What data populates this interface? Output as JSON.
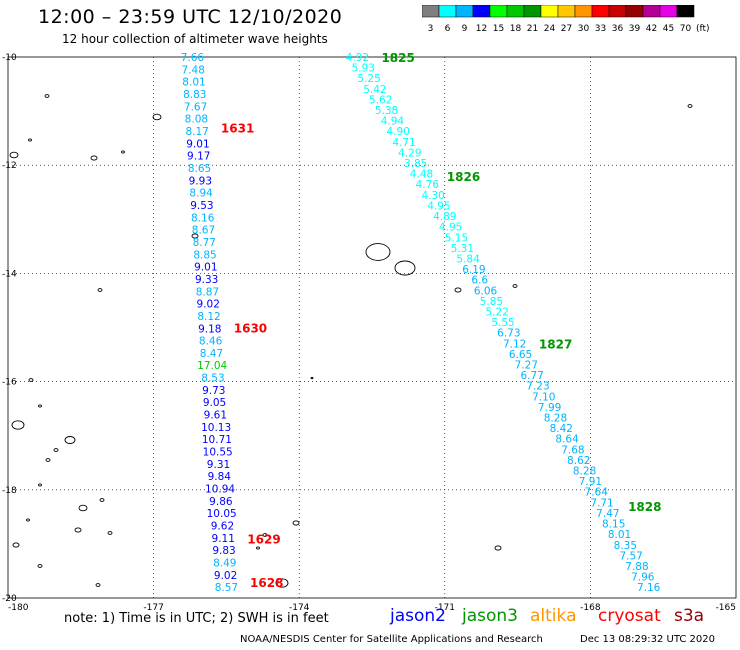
{
  "header": {
    "title": "12:00 – 23:59 UTC 12/10/2020",
    "subtitle": "12 hour collection of altimeter wave heights"
  },
  "legend": {
    "bins": [
      {
        "label": "3",
        "color": "#7f7f7f"
      },
      {
        "label": "6",
        "color": "#00ffff"
      },
      {
        "label": "9",
        "color": "#00b4ff"
      },
      {
        "label": "12",
        "color": "#0000ff"
      },
      {
        "label": "15",
        "color": "#00ff00"
      },
      {
        "label": "18",
        "color": "#00c800"
      },
      {
        "label": "21",
        "color": "#009600"
      },
      {
        "label": "24",
        "color": "#ffff00"
      },
      {
        "label": "27",
        "color": "#ffc800"
      },
      {
        "label": "30",
        "color": "#ff9600"
      },
      {
        "label": "33",
        "color": "#ff0000"
      },
      {
        "label": "36",
        "color": "#c80000"
      },
      {
        "label": "39",
        "color": "#960000"
      },
      {
        "label": "42",
        "color": "#b40096"
      },
      {
        "label": "45",
        "color": "#e600e6"
      },
      {
        "label": "70",
        "color": "#000000"
      }
    ],
    "unit": "(ft)"
  },
  "axes": {
    "lon_ticks": [
      "-180",
      "-177",
      "-174",
      "-171",
      "-168",
      "-165"
    ],
    "lat_ticks": [
      "-10",
      "-12",
      "-14",
      "-16",
      "-18",
      "-20"
    ],
    "lon_range": [
      -180,
      -165
    ],
    "lat_range": [
      -20,
      -10
    ]
  },
  "tracks": [
    {
      "id": "west",
      "lon_start": -176.2,
      "lat_start": -10.0,
      "lon_end": -175.5,
      "lat_end": -19.8,
      "times": [
        {
          "label": "1631",
          "lat": -11.3,
          "color": "#ff0000"
        },
        {
          "label": "1630",
          "lat": -15.0,
          "color": "#ff0000"
        },
        {
          "label": "1629",
          "lat": -18.9,
          "color": "#ff0000"
        },
        {
          "label": "1628",
          "lat": -19.7,
          "color": "#ff0000"
        }
      ],
      "values": [
        "7.66",
        "7.48",
        "8.01",
        "8.83",
        "7.67",
        "8.08",
        "8.17",
        "9.01",
        "9.17",
        "8.65",
        "9.93",
        "8.94",
        "9.53",
        "8.16",
        "8.67",
        "8.77",
        "8.85",
        "9.01",
        "9.33",
        "8.87",
        "9.02",
        "8.12",
        "9.18",
        "8.46",
        "8.47",
        "17.04",
        "8.53",
        "9.73",
        "9.05",
        "9.61",
        "10.13",
        "10.71",
        "10.55",
        "9.31",
        "9.84",
        "10.94",
        "9.86",
        "10.05",
        "9.62",
        "9.11",
        "9.83",
        "8.49",
        "9.02",
        "8.57"
      ]
    },
    {
      "id": "east",
      "lon_start": -172.8,
      "lat_start": -10.0,
      "lon_end": -166.8,
      "lat_end": -19.8,
      "times": [
        {
          "label": "1825",
          "lat": -10.0,
          "color": "#009600"
        },
        {
          "label": "1826",
          "lat": -12.2,
          "color": "#009600"
        },
        {
          "label": "1827",
          "lat": -15.3,
          "color": "#009600"
        },
        {
          "label": "1828",
          "lat": -18.3,
          "color": "#009600"
        }
      ],
      "values": [
        "4.92",
        "5.93",
        "5.25",
        "5.42",
        "5.62",
        "5.38",
        "4.94",
        "4.90",
        "4.71",
        "4.29",
        "3.85",
        "4.48",
        "4.76",
        "4.30",
        "4.95",
        "4.89",
        "4.95",
        "5.15",
        "5.31",
        "5.84",
        "6.19",
        "6.6",
        "6.06",
        "5.85",
        "5.22",
        "5.55",
        "6.73",
        "7.12",
        "6.65",
        "7.27",
        "6.77",
        "7.23",
        "7.10",
        "7.99",
        "8.28",
        "8.42",
        "8.64",
        "7.68",
        "8.62",
        "8.28",
        "7.91",
        "7.64",
        "7.71",
        "7.47",
        "8.15",
        "8.01",
        "8.35",
        "7.57",
        "7.88",
        "7.96",
        "7.16"
      ]
    }
  ],
  "footer": {
    "note": "note: 1) Time is in UTC; 2) SWH is in feet",
    "satellites": [
      {
        "name": "jason2",
        "color": "#0000ff"
      },
      {
        "name": "jason3",
        "color": "#009600"
      },
      {
        "name": "altika",
        "color": "#ff9600"
      },
      {
        "name": "cryosat",
        "color": "#ff0000"
      },
      {
        "name": "s3a",
        "color": "#960000"
      }
    ],
    "credit": "NOAA/NESDIS Center for Satellite Applications and Research",
    "timestamp": "Dec 13 08:29:32 UTC 2020"
  }
}
